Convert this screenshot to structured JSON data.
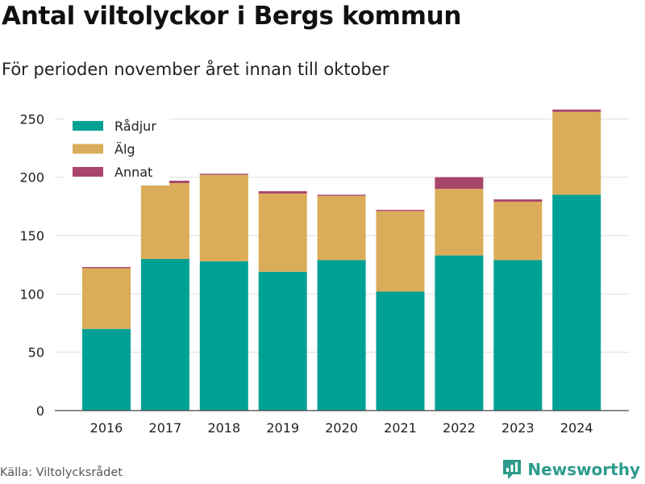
{
  "title": "Antal viltolyckor i Bergs kommun",
  "subtitle": "För perioden november året innan till oktober",
  "source": "Källa: Viltolycksrådet",
  "brand": {
    "name": "Newsworthy",
    "icon": "bar-chart-logo-icon",
    "color": "#2e9b8c"
  },
  "chart_data": {
    "type": "bar",
    "stacked": true,
    "categories": [
      "2016",
      "2017",
      "2018",
      "2019",
      "2020",
      "2021",
      "2022",
      "2023",
      "2024"
    ],
    "series": [
      {
        "name": "Rådjur",
        "color": "#00a195",
        "values": [
          70,
          130,
          128,
          119,
          129,
          102,
          133,
          129,
          185
        ]
      },
      {
        "name": "Älg",
        "color": "#dbad5a",
        "values": [
          52,
          65,
          74,
          67,
          55,
          69,
          57,
          50,
          71
        ]
      },
      {
        "name": "Annat",
        "color": "#a8456a",
        "values": [
          1,
          2,
          1,
          2,
          1,
          1,
          10,
          2,
          2
        ]
      }
    ],
    "ylim": [
      0,
      262
    ],
    "yticks": [
      0,
      50,
      100,
      150,
      200,
      250
    ],
    "grid": true,
    "legend_position": "top-left"
  }
}
